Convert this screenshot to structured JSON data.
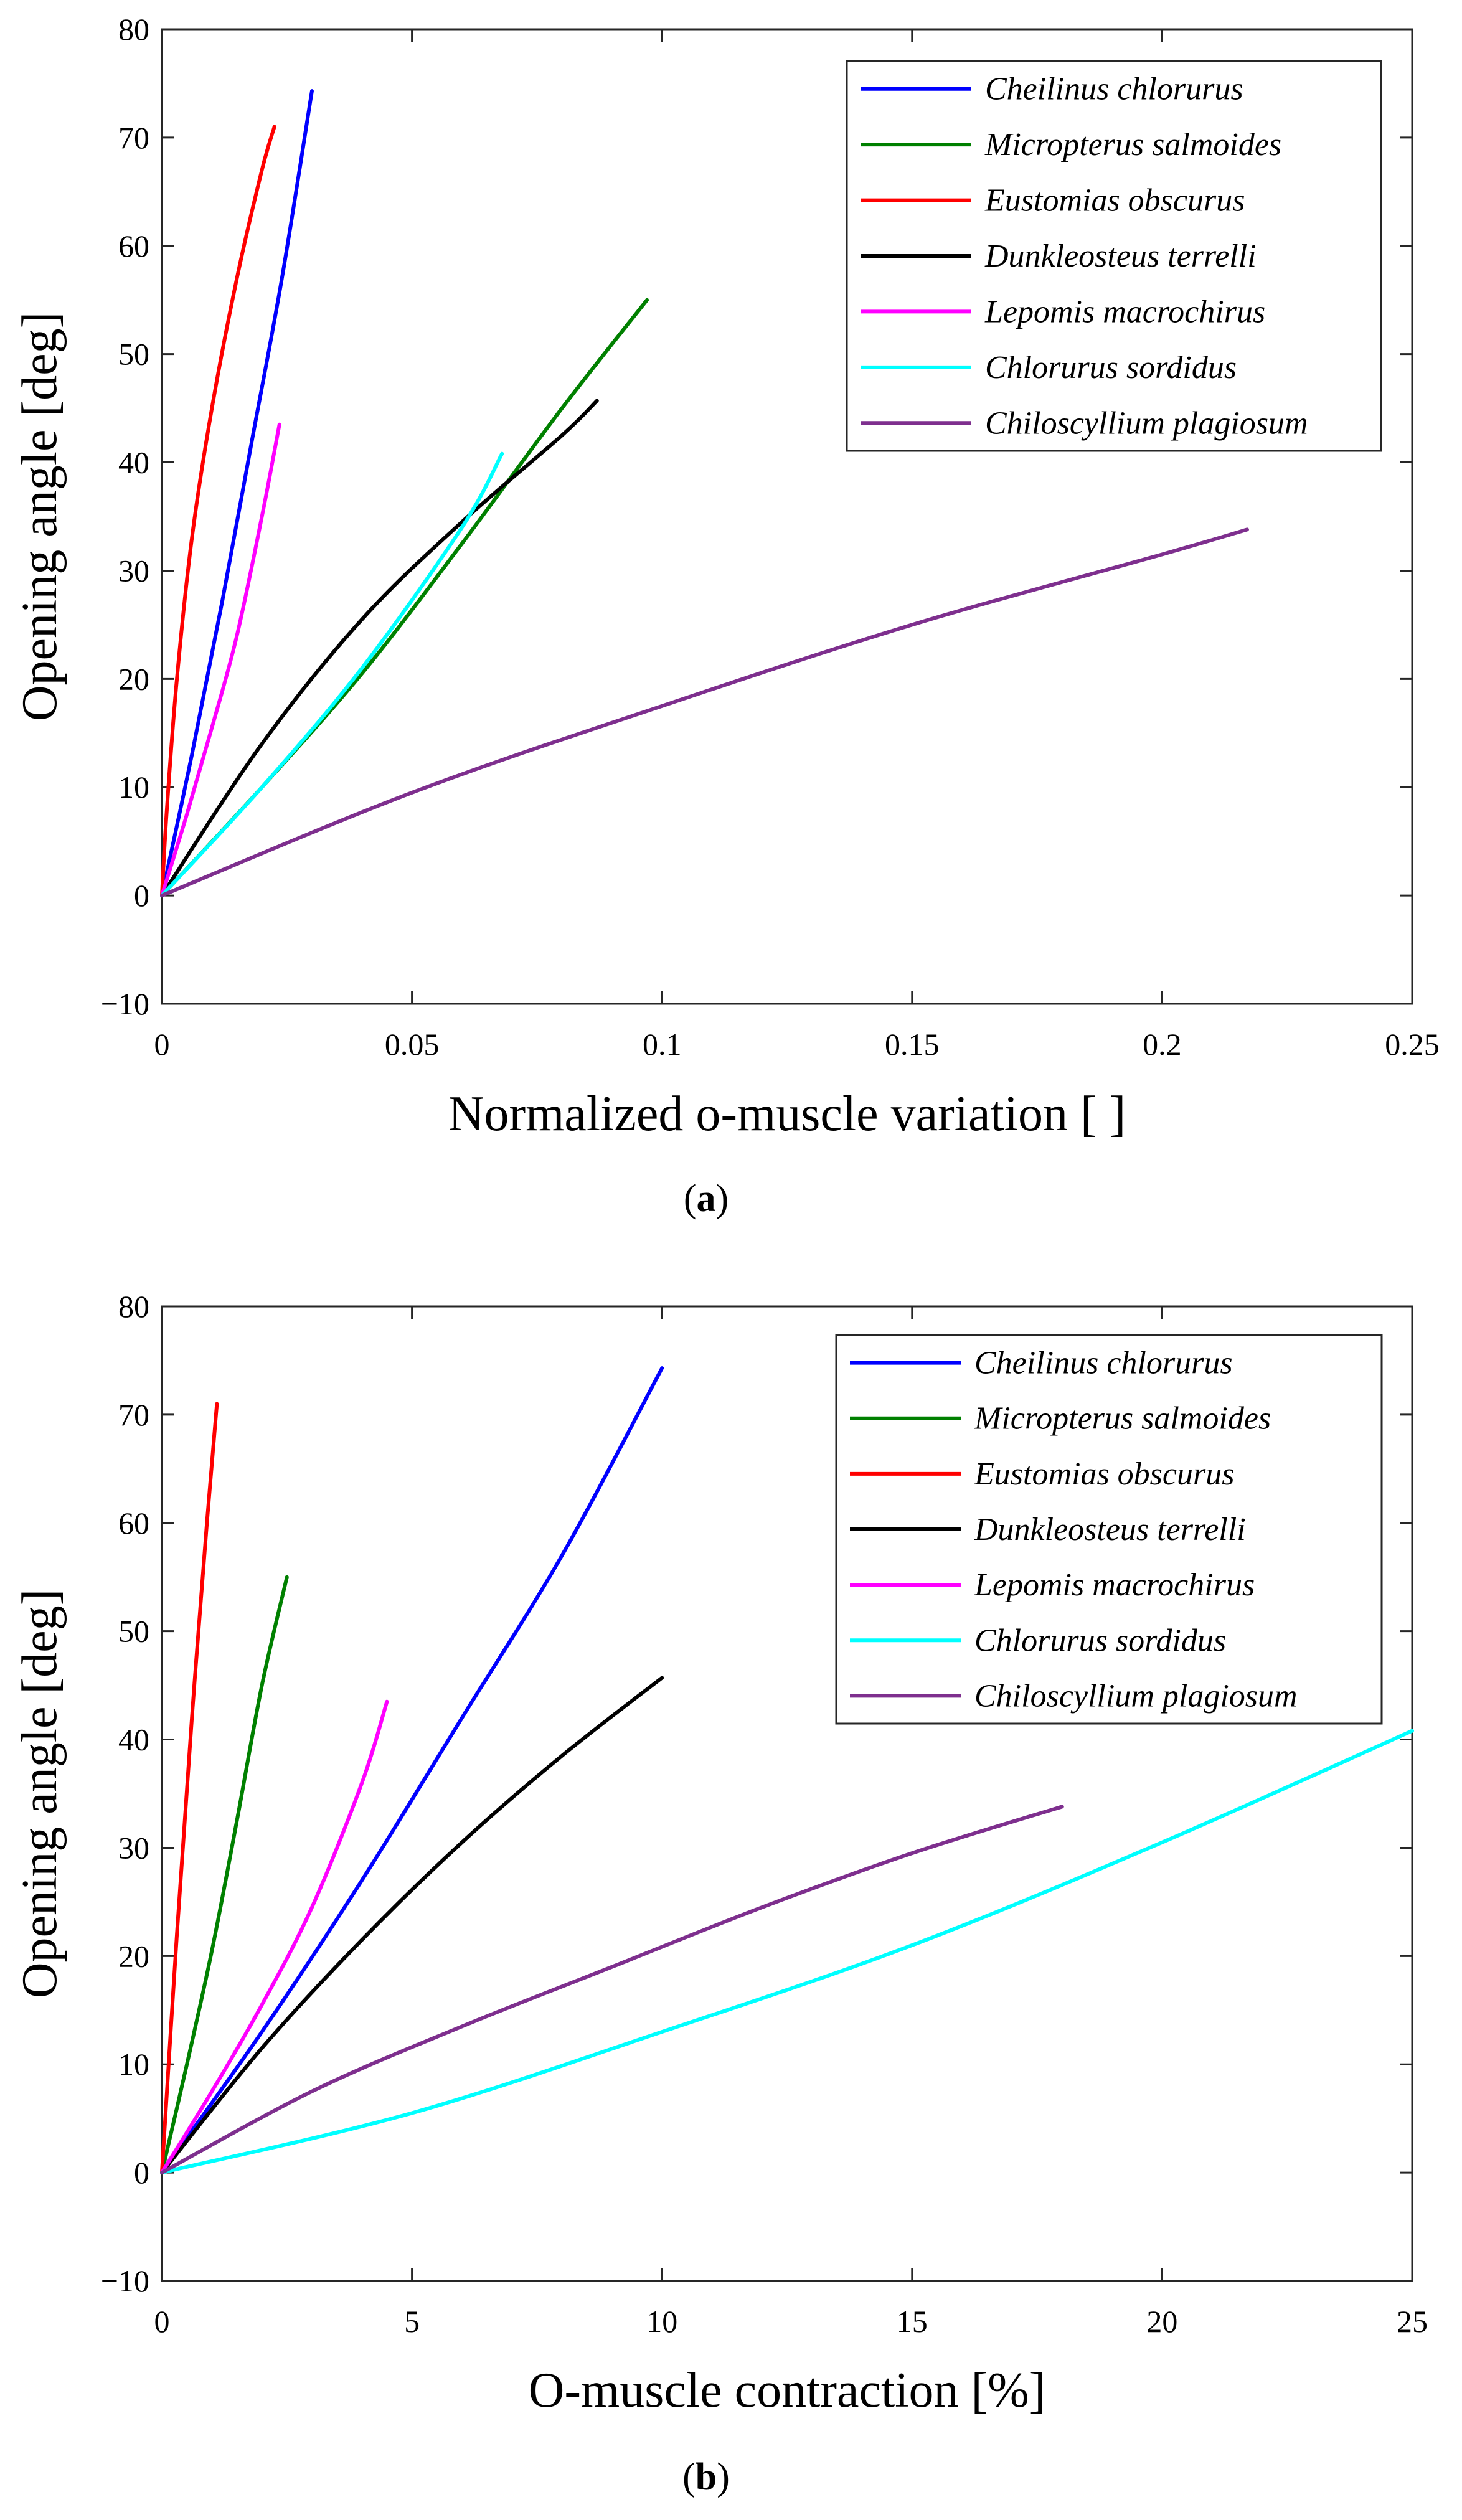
{
  "chart_data": [
    {
      "type": "line",
      "panel_label": "a",
      "xlabel": "Normalized o-muscle variation [ ]",
      "ylabel": "Opening angle [deg]",
      "xlim": [
        0,
        0.25
      ],
      "ylim": [
        -10,
        80
      ],
      "x_ticks": [
        0,
        0.05,
        0.1,
        0.15,
        0.2,
        0.25
      ],
      "x_tick_labels": [
        "0",
        "0.05",
        "0.1",
        "0.15",
        "0.2",
        "0.25"
      ],
      "y_ticks": [
        -10,
        0,
        10,
        20,
        30,
        40,
        50,
        60,
        70,
        80
      ],
      "y_tick_labels": [
        "−10",
        "0",
        "10",
        "20",
        "30",
        "40",
        "50",
        "60",
        "70",
        "80"
      ],
      "legend_position": "top-right",
      "series": [
        {
          "name": "Cheilinus chlorurus",
          "color": "#0000ff",
          "x": [
            0,
            0.006,
            0.012,
            0.018,
            0.024,
            0.03
          ],
          "y": [
            0,
            13,
            27,
            42,
            57,
            74.3
          ]
        },
        {
          "name": "Micropterus salmoides",
          "color": "#008000",
          "x": [
            0,
            0.02,
            0.04,
            0.06,
            0.08,
            0.097
          ],
          "y": [
            0,
            10,
            20.5,
            32.5,
            45,
            55
          ]
        },
        {
          "name": "Eustomias obscurus",
          "color": "#ff0000",
          "x": [
            0,
            0.001,
            0.003,
            0.006,
            0.01,
            0.015,
            0.02,
            0.0225
          ],
          "y": [
            0,
            8,
            20,
            33,
            45,
            57,
            67,
            71
          ]
        },
        {
          "name": "Dunkleosteus terrelli",
          "color": "#000000",
          "x": [
            0,
            0.02,
            0.04,
            0.06,
            0.08,
            0.087
          ],
          "y": [
            0,
            14,
            25.5,
            34.5,
            42.5,
            45.7
          ]
        },
        {
          "name": "Lepomis macrochirus",
          "color": "#ff00ff",
          "x": [
            0,
            0.005,
            0.01,
            0.015,
            0.02,
            0.0235
          ],
          "y": [
            0,
            7.5,
            15.5,
            24,
            35,
            43.5
          ]
        },
        {
          "name": "Chlorurus sordidus",
          "color": "#00ffff",
          "x": [
            0,
            0.02,
            0.04,
            0.06,
            0.068
          ],
          "y": [
            0,
            10,
            21,
            34,
            40.8
          ]
        },
        {
          "name": "Chiloscyllium plagiosum",
          "color": "#7e2f8e",
          "x": [
            0,
            0.05,
            0.1,
            0.15,
            0.2,
            0.217
          ],
          "y": [
            0,
            9.5,
            17.5,
            25,
            31.5,
            33.8
          ]
        }
      ]
    },
    {
      "type": "line",
      "panel_label": "b",
      "xlabel": "O-muscle contraction [%]",
      "ylabel": "Opening angle [deg]",
      "xlim": [
        0,
        25
      ],
      "ylim": [
        -10,
        80
      ],
      "x_ticks": [
        0,
        5,
        10,
        15,
        20,
        25
      ],
      "x_tick_labels": [
        "0",
        "5",
        "10",
        "15",
        "20",
        "25"
      ],
      "y_ticks": [
        -10,
        0,
        10,
        20,
        30,
        40,
        50,
        60,
        70,
        80
      ],
      "y_tick_labels": [
        "−10",
        "0",
        "10",
        "20",
        "30",
        "40",
        "50",
        "60",
        "70",
        "80"
      ],
      "legend_position": "top-right",
      "series": [
        {
          "name": "Cheilinus chlorurus",
          "color": "#0000ff",
          "x": [
            0,
            2,
            4,
            6,
            8,
            10
          ],
          "y": [
            0,
            13,
            27,
            42,
            57,
            74.3
          ]
        },
        {
          "name": "Micropterus salmoides",
          "color": "#008000",
          "x": [
            0,
            0.5,
            1.0,
            1.5,
            2.0,
            2.5
          ],
          "y": [
            0,
            10,
            20.5,
            32.5,
            45,
            55
          ]
        },
        {
          "name": "Eustomias obscurus",
          "color": "#ff0000",
          "x": [
            0,
            0.3,
            0.6,
            0.9,
            1.1
          ],
          "y": [
            0,
            22,
            42,
            60,
            71
          ]
        },
        {
          "name": "Dunkleosteus terrelli",
          "color": "#000000",
          "x": [
            0,
            2,
            4,
            6,
            8,
            10
          ],
          "y": [
            0,
            11.5,
            21.5,
            30.5,
            38.5,
            45.7
          ]
        },
        {
          "name": "Lepomis macrochirus",
          "color": "#ff00ff",
          "x": [
            0,
            1,
            2,
            3,
            4,
            4.5
          ],
          "y": [
            0,
            7.5,
            15.5,
            24.5,
            36,
            43.5
          ]
        },
        {
          "name": "Chlorurus sordidus",
          "color": "#00ffff",
          "x": [
            0,
            5,
            10,
            15,
            20,
            25
          ],
          "y": [
            0,
            5.5,
            13,
            21,
            30.5,
            40.8
          ]
        },
        {
          "name": "Chiloscyllium plagiosum",
          "color": "#7e2f8e",
          "x": [
            0,
            3,
            6,
            9,
            12,
            15,
            18
          ],
          "y": [
            0,
            7.5,
            13.5,
            19,
            24.5,
            29.5,
            33.8
          ]
        }
      ]
    }
  ]
}
